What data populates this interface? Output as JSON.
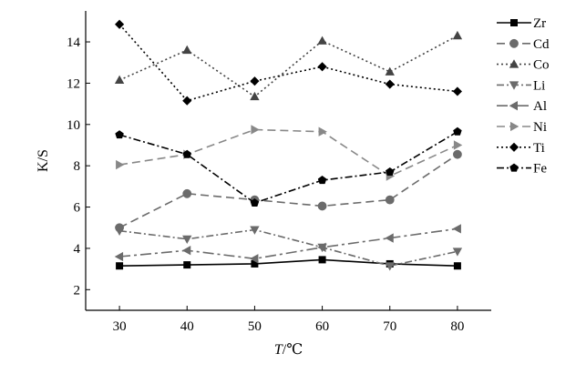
{
  "chart_data": {
    "type": "line",
    "xlabel": "T/℃",
    "xlabel_italic_part": "T",
    "xlabel_rest": "/℃",
    "ylabel": "K/S",
    "x": [
      30,
      40,
      50,
      60,
      70,
      80
    ],
    "xlim": [
      25,
      85
    ],
    "ylim": [
      1,
      15.5
    ],
    "xticks": [
      "30",
      "40",
      "50",
      "60",
      "70",
      "80"
    ],
    "yticks": [
      "2",
      "4",
      "6",
      "8",
      "10",
      "12",
      "14"
    ],
    "legend_position": "right",
    "grid": false,
    "series": [
      {
        "name": "Zr",
        "values": [
          3.15,
          3.2,
          3.25,
          3.45,
          3.25,
          3.15
        ],
        "color": "#000000",
        "dash": "solid",
        "marker": "square"
      },
      {
        "name": "Cd",
        "values": [
          5.0,
          6.65,
          6.35,
          6.05,
          6.35,
          8.55
        ],
        "color": "#6b6b6b",
        "dash": "dash",
        "marker": "circle"
      },
      {
        "name": "Co",
        "values": [
          12.15,
          13.6,
          11.35,
          14.05,
          12.55,
          14.3
        ],
        "color": "#444444",
        "dash": "dot",
        "marker": "triangle-up"
      },
      {
        "name": "Li",
        "values": [
          4.85,
          4.45,
          4.9,
          4.05,
          3.15,
          3.85
        ],
        "color": "#6b6b6b",
        "dash": "dashdot",
        "marker": "triangle-down"
      },
      {
        "name": "Al",
        "values": [
          3.6,
          3.9,
          3.5,
          4.05,
          4.5,
          4.95
        ],
        "color": "#6b6b6b",
        "dash": "longdashdot",
        "marker": "triangle-left"
      },
      {
        "name": "Ni",
        "values": [
          8.05,
          8.55,
          9.75,
          9.65,
          7.5,
          9.0
        ],
        "color": "#888888",
        "dash": "dash",
        "marker": "triangle-right"
      },
      {
        "name": "Ti",
        "values": [
          14.85,
          11.15,
          12.1,
          12.8,
          11.95,
          11.6
        ],
        "color": "#000000",
        "dash": "dot",
        "marker": "diamond"
      },
      {
        "name": "Fe",
        "values": [
          9.5,
          8.55,
          6.2,
          7.3,
          7.7,
          9.65
        ],
        "color": "#000000",
        "dash": "dashdot",
        "marker": "pentagon"
      }
    ]
  }
}
